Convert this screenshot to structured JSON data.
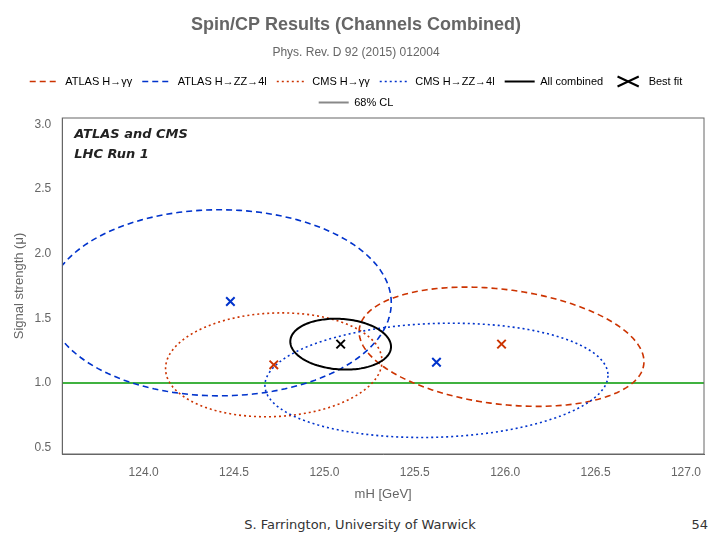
{
  "chart_data": {
    "type": "scatter",
    "title": "Spin/CP Results (Channels Combined)",
    "subtitle": "Phys. Rev. D 92 (2015) 012004",
    "footer": "S. Farrington, University of Warwick",
    "slide_number": "54",
    "x_label": "mH [GeV]",
    "y_label": "Signal strength (μ)",
    "xlim": [
      123.55,
      127.1
    ],
    "ylim": [
      0.45,
      3.05
    ],
    "xticks": [
      {
        "value": 124,
        "label": "124.0"
      },
      124.5,
      {
        "value": 125,
        "label": "125.0"
      },
      125.5,
      {
        "value": 126,
        "label": "126.0"
      },
      126.5,
      {
        "value": 127,
        "label": "127.0"
      }
    ],
    "yticks": [
      0.5,
      {
        "value": 1,
        "label": "1.0"
      },
      1.5,
      {
        "value": 2,
        "label": "2.0"
      },
      2.5,
      {
        "value": 3,
        "label": "3.0"
      }
    ],
    "grid": false,
    "legend": "top",
    "annotations": [
      "ATLAS and CMS",
      "LHC Run 1"
    ],
    "hlines": [
      {
        "y": 1.0,
        "color": "#009900"
      }
    ],
    "series": [
      {
        "name": "ATLAS H→γγ",
        "color": "#cc3300",
        "line_style": "dashed",
        "marker": "x",
        "center": [
          125.98,
          1.28
        ],
        "radii": [
          0.8,
          0.44
        ],
        "angle": -12,
        "best_fit": [
          125.98,
          1.3
        ]
      },
      {
        "name": "ATLAS H→ZZ→4l",
        "color": "#0033cc",
        "line_style": "dashed",
        "marker": "x",
        "center": [
          124.42,
          1.62
        ],
        "radii": [
          0.95,
          0.72
        ],
        "angle": 0,
        "best_fit": [
          124.48,
          1.63
        ]
      },
      {
        "name": "CMS H→γγ",
        "color": "#cc3300",
        "line_style": "dotted",
        "marker": "x",
        "center": [
          124.72,
          1.14
        ],
        "radii": [
          0.6,
          0.4
        ],
        "angle": 5,
        "best_fit": [
          124.72,
          1.14
        ]
      },
      {
        "name": "CMS H→ZZ→4l",
        "color": "#0033cc",
        "line_style": "dotted",
        "marker": "x",
        "center": [
          125.62,
          1.02
        ],
        "radii": [
          0.95,
          0.44
        ],
        "angle": 3,
        "best_fit": [
          125.62,
          1.16
        ]
      },
      {
        "name": "All combined",
        "color": "#000000",
        "line_style": "solid",
        "marker": "x",
        "center": [
          125.09,
          1.3
        ],
        "radii": [
          0.28,
          0.195
        ],
        "angle": -8,
        "best_fit": [
          125.09,
          1.3
        ]
      }
    ],
    "legend_extra": [
      {
        "name": "Best fit",
        "color": "#000000",
        "marker": "x"
      },
      {
        "name": "68% CL",
        "color": "#888888",
        "line_style": "solid"
      }
    ]
  }
}
